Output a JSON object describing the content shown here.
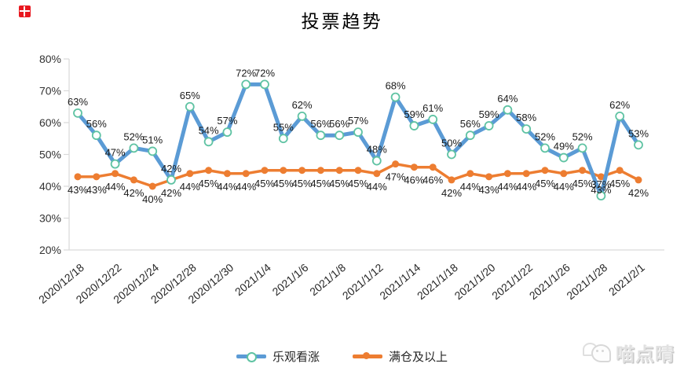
{
  "title": "投票趋势",
  "icons": {
    "red_mark": "red-square-cross-mark",
    "watermark_icon": "chat-bubbles-cat-face"
  },
  "colors": {
    "series_blue": "#5B9BD5",
    "series_orange": "#ED7D31",
    "blue_marker_ring": "#5FC3A3",
    "axis": "#D9D9D9",
    "label_text": "#1a1a1a",
    "tick_text": "#333333"
  },
  "chart_data": {
    "type": "line",
    "title": "投票趋势",
    "n_points": 31,
    "y_axis": {
      "min": 20,
      "max": 80,
      "step": 10,
      "ticks": [
        "80%",
        "70%",
        "60%",
        "50%",
        "40%",
        "30%",
        "20%"
      ]
    },
    "x_tick_labels": [
      "2020/12/18",
      "2020/12/22",
      "2020/12/24",
      "2020/12/28",
      "2020/12/30",
      "2021/1/4",
      "2021/1/6",
      "2021/1/8",
      "2021/1/12",
      "2021/1/14",
      "2021/1/18",
      "2021/1/20",
      "2021/1/22",
      "2021/1/26",
      "2021/1/28",
      "2021/2/1"
    ],
    "points_per_x_label": 2,
    "grid": "off",
    "legend_position": "bottom",
    "data_labels": "on",
    "series": [
      {
        "name": "乐观看涨",
        "color": "#5B9BD5",
        "marker": "open-circle",
        "marker_ring": "#5FC3A3",
        "line_width": 5,
        "label_position": "above",
        "label_suffix": "%",
        "values": [
          63,
          56,
          47,
          52,
          51,
          42,
          65,
          54,
          57,
          72,
          72,
          55,
          62,
          56,
          56,
          57,
          48,
          68,
          59,
          61,
          50,
          56,
          59,
          64,
          58,
          52,
          49,
          52,
          37,
          62,
          53
        ]
      },
      {
        "name": "满仓及以上",
        "color": "#ED7D31",
        "marker": "filled-circle",
        "line_width": 3.5,
        "label_position": "below",
        "label_suffix": "%",
        "values": [
          43,
          43,
          44,
          42,
          40,
          42,
          44,
          45,
          44,
          44,
          45,
          45,
          45,
          45,
          45,
          45,
          44,
          47,
          46,
          46,
          42,
          44,
          43,
          44,
          44,
          45,
          44,
          45,
          43,
          45,
          42
        ]
      }
    ]
  },
  "legend": {
    "items": [
      {
        "label": "乐观看涨",
        "color": "#5B9BD5"
      },
      {
        "label": "满仓及以上",
        "color": "#ED7D31"
      }
    ]
  },
  "watermark": {
    "text": "喵点晴"
  }
}
